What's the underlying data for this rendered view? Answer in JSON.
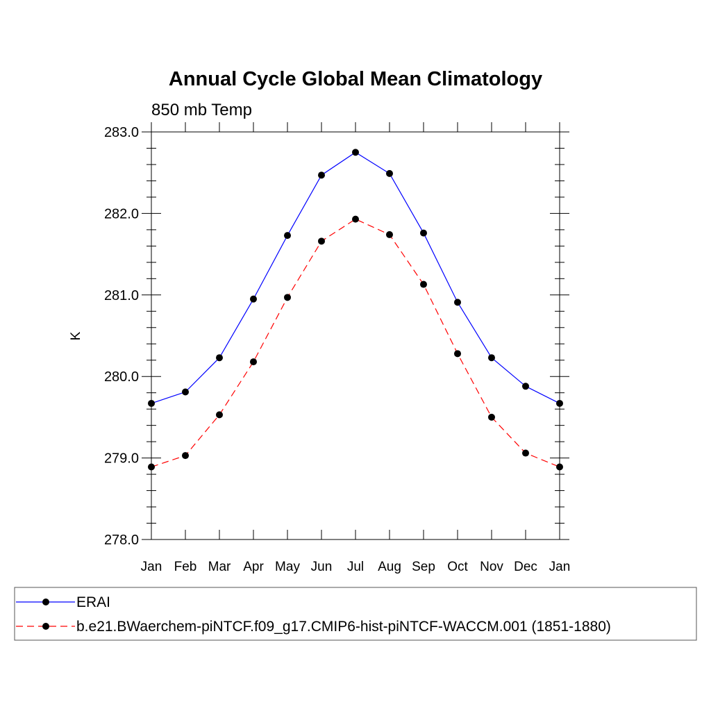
{
  "chart_data": {
    "type": "line",
    "title": "Annual Cycle Global Mean Climatology",
    "subtitle": "850 mb Temp",
    "xlabel": "",
    "ylabel": "K",
    "categories": [
      "Jan",
      "Feb",
      "Mar",
      "Apr",
      "May",
      "Jun",
      "Jul",
      "Aug",
      "Sep",
      "Oct",
      "Nov",
      "Dec",
      "Jan"
    ],
    "ylim": [
      278.0,
      283.0
    ],
    "yticks": [
      "278.0",
      "279.0",
      "280.0",
      "281.0",
      "282.0",
      "283.0"
    ],
    "grid": false,
    "legend_position": "bottom",
    "series": [
      {
        "name": "ERAI",
        "color": "#0000ff",
        "line_style": "solid",
        "marker": "filled-circle",
        "values": [
          279.67,
          279.81,
          280.23,
          280.95,
          281.73,
          282.47,
          282.75,
          282.49,
          281.76,
          280.91,
          280.23,
          279.88,
          279.67
        ]
      },
      {
        "name": "b.e21.BWaerchem-piNTCF.f09_g17.CMIP6-hist-piNTCF-WACCM.001 (1851-1880)",
        "color": "#ff0000",
        "line_style": "dashed",
        "marker": "filled-circle",
        "values": [
          278.89,
          279.03,
          279.53,
          280.18,
          280.97,
          281.66,
          281.93,
          281.74,
          281.13,
          280.28,
          279.5,
          279.06,
          278.89
        ]
      }
    ]
  }
}
